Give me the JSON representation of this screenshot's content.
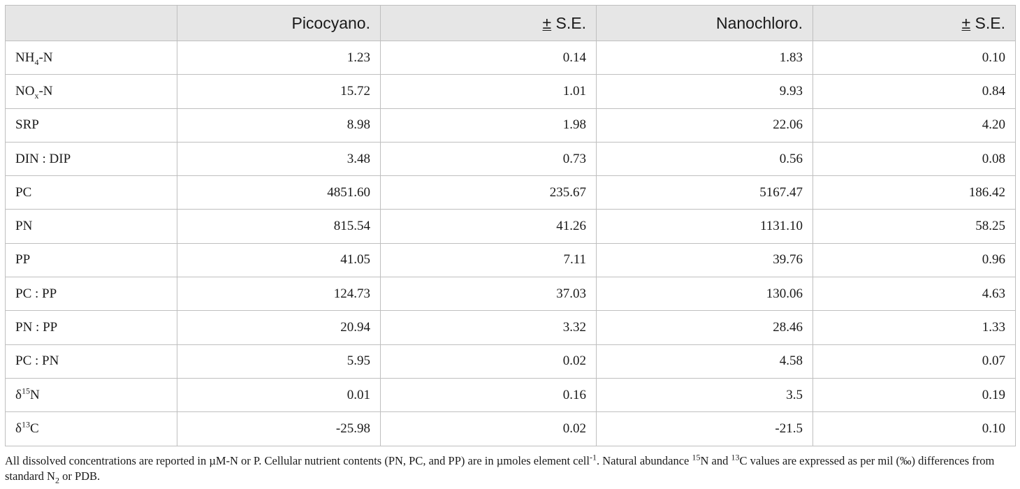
{
  "table": {
    "headers": [
      "",
      "Picocyano.",
      "S.E.",
      "Nanochloro.",
      "S.E."
    ],
    "pm_symbol": "±",
    "rows": [
      {
        "label": "NH",
        "sub": "4",
        "sup": "",
        "tail": "-N",
        "values": [
          "1.23",
          "0.14",
          "1.83",
          "0.10"
        ]
      },
      {
        "label": "NO",
        "sub": "x",
        "sup": "",
        "tail": "-N",
        "values": [
          "15.72",
          "1.01",
          "9.93",
          "0.84"
        ]
      },
      {
        "label": "SRP",
        "sub": "",
        "sup": "",
        "tail": "",
        "values": [
          "8.98",
          "1.98",
          "22.06",
          "4.20"
        ]
      },
      {
        "label": "DIN : DIP",
        "sub": "",
        "sup": "",
        "tail": "",
        "values": [
          "3.48",
          "0.73",
          "0.56",
          "0.08"
        ]
      },
      {
        "label": "PC",
        "sub": "",
        "sup": "",
        "tail": "",
        "values": [
          "4851.60",
          "235.67",
          "5167.47",
          "186.42"
        ]
      },
      {
        "label": "PN",
        "sub": "",
        "sup": "",
        "tail": "",
        "values": [
          "815.54",
          "41.26",
          "1131.10",
          "58.25"
        ]
      },
      {
        "label": "PP",
        "sub": "",
        "sup": "",
        "tail": "",
        "values": [
          "41.05",
          "7.11",
          "39.76",
          "0.96"
        ]
      },
      {
        "label": "PC : PP",
        "sub": "",
        "sup": "",
        "tail": "",
        "values": [
          "124.73",
          "37.03",
          "130.06",
          "4.63"
        ]
      },
      {
        "label": "PN : PP",
        "sub": "",
        "sup": "",
        "tail": "",
        "values": [
          "20.94",
          "3.32",
          "28.46",
          "1.33"
        ]
      },
      {
        "label": "PC : PN",
        "sub": "",
        "sup": "",
        "tail": "",
        "values": [
          "5.95",
          "0.02",
          "4.58",
          "0.07"
        ]
      },
      {
        "label": "δ",
        "sub": "",
        "sup": "15",
        "tail": "N",
        "values": [
          "0.01",
          "0.16",
          "3.5",
          "0.19"
        ]
      },
      {
        "label": "δ",
        "sub": "",
        "sup": "13",
        "tail": "C",
        "values": [
          "-25.98",
          "0.02",
          "-21.5",
          "0.10"
        ]
      }
    ]
  },
  "footnote": {
    "p1": "All dissolved concentrations are reported in µM-N or P. Cellular nutrient contents (PN, PC, and PP) are in µmoles element cell",
    "p1_sup": "-1",
    "p2": ". Natural abundance ",
    "p2_sup": "15",
    "p3": "N and ",
    "p3_sup": "13",
    "p4": "C values are expressed as per mil (‰) differences from standard N",
    "p4_sub": "2",
    "p5": " or PDB."
  }
}
